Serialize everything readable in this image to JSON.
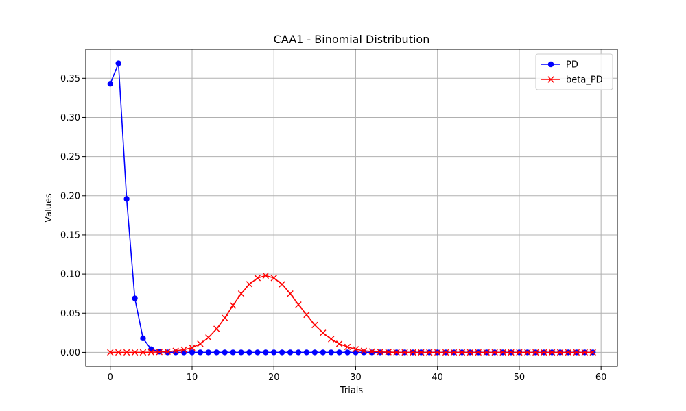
{
  "chart_data": {
    "type": "line",
    "title": "CAA1 - Binomial Distribution",
    "xlabel": "Trials",
    "ylabel": "Values",
    "xlim": [
      -3,
      62
    ],
    "ylim": [
      -0.018,
      0.387
    ],
    "xticks": [
      0,
      10,
      20,
      30,
      40,
      50,
      60
    ],
    "yticks": [
      0.0,
      0.05,
      0.1,
      0.15,
      0.2,
      0.25,
      0.3,
      0.35
    ],
    "xtick_labels": [
      "0",
      "10",
      "20",
      "30",
      "40",
      "50",
      "60"
    ],
    "ytick_labels": [
      "0.00",
      "0.05",
      "0.10",
      "0.15",
      "0.20",
      "0.25",
      "0.30",
      "0.35"
    ],
    "grid": true,
    "legend": "top-right",
    "series": [
      {
        "name": "PD",
        "color": "#0000ff",
        "marker": "circle",
        "x": [
          0,
          1,
          2,
          3,
          4,
          5,
          6,
          7,
          8,
          9,
          10,
          11,
          12,
          13,
          14,
          15,
          16,
          17,
          18,
          19,
          20,
          21,
          22,
          23,
          24,
          25,
          26,
          27,
          28,
          29,
          30,
          31,
          32,
          33,
          34,
          35,
          36,
          37,
          38,
          39,
          40,
          41,
          42,
          43,
          44,
          45,
          46,
          47,
          48,
          49,
          50,
          51,
          52,
          53,
          54,
          55,
          56,
          57,
          58,
          59
        ],
        "values": [
          0.343,
          0.369,
          0.196,
          0.069,
          0.018,
          0.004,
          0.001,
          0,
          0,
          0,
          0,
          0,
          0,
          0,
          0,
          0,
          0,
          0,
          0,
          0,
          0,
          0,
          0,
          0,
          0,
          0,
          0,
          0,
          0,
          0,
          0,
          0,
          0,
          0,
          0,
          0,
          0,
          0,
          0,
          0,
          0,
          0,
          0,
          0,
          0,
          0,
          0,
          0,
          0,
          0,
          0,
          0,
          0,
          0,
          0,
          0,
          0,
          0,
          0,
          0
        ]
      },
      {
        "name": "beta_PD",
        "color": "#ff0000",
        "marker": "x",
        "x": [
          0,
          1,
          2,
          3,
          4,
          5,
          6,
          7,
          8,
          9,
          10,
          11,
          12,
          13,
          14,
          15,
          16,
          17,
          18,
          19,
          20,
          21,
          22,
          23,
          24,
          25,
          26,
          27,
          28,
          29,
          30,
          31,
          32,
          33,
          34,
          35,
          36,
          37,
          38,
          39,
          40,
          41,
          42,
          43,
          44,
          45,
          46,
          47,
          48,
          49,
          50,
          51,
          52,
          53,
          54,
          55,
          56,
          57,
          58,
          59
        ],
        "values": [
          0,
          0,
          0,
          0,
          0,
          0.0002,
          0.0005,
          0.001,
          0.002,
          0.0035,
          0.006,
          0.011,
          0.019,
          0.03,
          0.044,
          0.06,
          0.075,
          0.087,
          0.095,
          0.098,
          0.095,
          0.087,
          0.075,
          0.061,
          0.048,
          0.035,
          0.025,
          0.017,
          0.011,
          0.007,
          0.004,
          0.002,
          0.0012,
          0.0006,
          0.0003,
          0.0001,
          0,
          0,
          0,
          0,
          0,
          0,
          0,
          0,
          0,
          0,
          0,
          0,
          0,
          0,
          0,
          0,
          0,
          0,
          0,
          0,
          0,
          0,
          0,
          0
        ]
      }
    ]
  }
}
